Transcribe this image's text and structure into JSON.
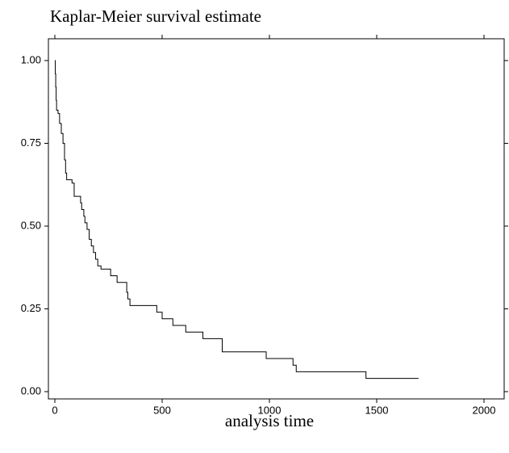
{
  "chart_data": {
    "type": "line",
    "step": "post",
    "title": "Kaplar-Meier survival estimate",
    "x_label": "analysis time",
    "x": [
      0,
      2,
      4,
      6,
      8,
      15,
      22,
      30,
      38,
      45,
      50,
      55,
      80,
      90,
      120,
      125,
      135,
      140,
      150,
      160,
      170,
      180,
      190,
      200,
      215,
      260,
      290,
      335,
      340,
      350,
      475,
      500,
      550,
      610,
      690,
      780,
      985,
      1110,
      1125,
      1450,
      1695
    ],
    "series": [
      {
        "color": "#000000",
        "values": [
          1.0,
          0.96,
          0.92,
          0.88,
          0.85,
          0.84,
          0.81,
          0.78,
          0.75,
          0.7,
          0.66,
          0.64,
          0.63,
          0.59,
          0.57,
          0.55,
          0.53,
          0.51,
          0.49,
          0.46,
          0.44,
          0.42,
          0.4,
          0.38,
          0.37,
          0.35,
          0.33,
          0.3,
          0.28,
          0.26,
          0.24,
          0.22,
          0.2,
          0.18,
          0.16,
          0.12,
          0.1,
          0.08,
          0.06,
          0.04,
          0.04
        ]
      }
    ],
    "xlim": [
      0,
      2000
    ],
    "xticks": [
      0,
      500,
      1000,
      1500,
      2000
    ],
    "ylim": [
      0,
      1
    ],
    "yticks": [
      {
        "value": 1,
        "label": "1.00"
      },
      {
        "value": 0.75,
        "label": "0.75"
      },
      {
        "value": 0.5,
        "label": "0.50"
      },
      {
        "value": 0.25,
        "label": "0.25"
      },
      {
        "value": 0,
        "label": "0.00"
      }
    ],
    "grid": false
  }
}
